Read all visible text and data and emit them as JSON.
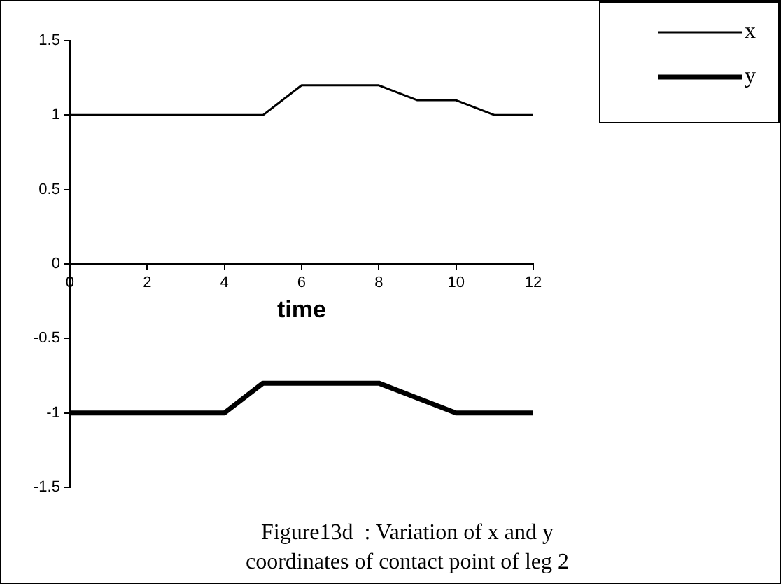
{
  "chart_data": {
    "type": "line",
    "xlabel": "time",
    "annotations": [
      "Figure13d  : Variation of x and y coordinates of contact point of leg 2"
    ],
    "x": [
      0,
      1,
      2,
      3,
      4,
      5,
      6,
      7,
      8,
      9,
      10,
      11,
      12
    ],
    "series": [
      {
        "name": "x",
        "color": "#000000",
        "values": [
          1,
          1,
          1,
          1,
          1,
          1,
          1.2,
          1.2,
          1.2,
          1.1,
          1.1,
          1,
          1
        ]
      },
      {
        "name": "y",
        "color": "#000000",
        "values": [
          -1,
          -1,
          -1,
          -1,
          -1,
          -0.8,
          -0.8,
          -0.8,
          -0.8,
          -0.9,
          -1,
          -1,
          -1
        ]
      }
    ],
    "xlim": [
      0,
      12
    ],
    "xticks": [
      0,
      2,
      4,
      6,
      8,
      10,
      12
    ],
    "ylim": [
      -1.5,
      1.5
    ],
    "yticks": [
      -1.5,
      {
        "value": -1,
        "label": "-1"
      },
      -0.5,
      0,
      0.5,
      1,
      1.5
    ],
    "grid": false,
    "legend": "top right",
    "marker": "none",
    "line_style": "solid"
  }
}
